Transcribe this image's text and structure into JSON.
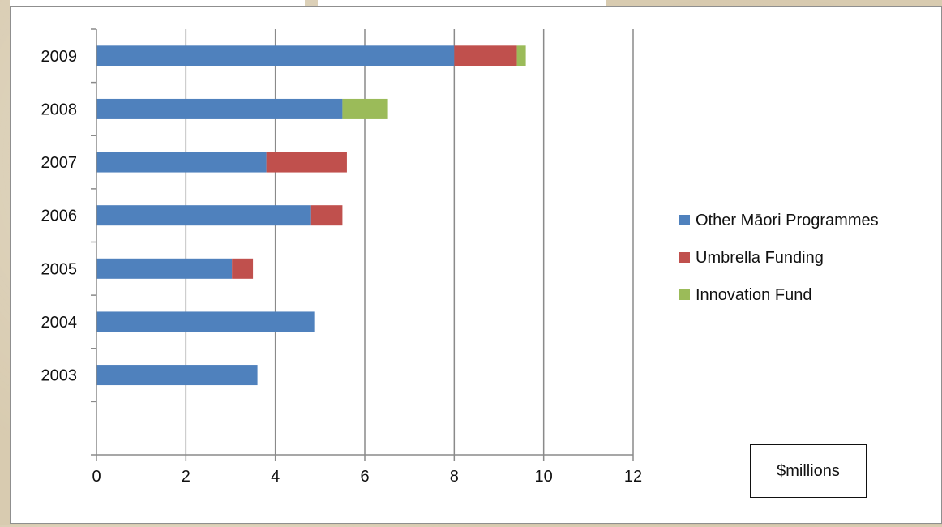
{
  "unit_label": "$millions",
  "chart_data": {
    "type": "bar",
    "orientation": "horizontal",
    "stacked": true,
    "categories": [
      "2003",
      "2004",
      "2005",
      "2006",
      "2007",
      "2008",
      "2009"
    ],
    "series": [
      {
        "name": "Other Māori Programmes",
        "color": "#4f81bd",
        "values": [
          3.6,
          4.87,
          3.03,
          4.8,
          3.8,
          5.5,
          8.0
        ]
      },
      {
        "name": "Umbrella Funding",
        "color": "#c0504d",
        "values": [
          0,
          0,
          0.47,
          0.7,
          1.8,
          0,
          1.4
        ]
      },
      {
        "name": "Innovation Fund",
        "color": "#9bbb59",
        "values": [
          0,
          0,
          0,
          0,
          0,
          1.0,
          0.2
        ]
      }
    ],
    "x_ticks": [
      "0",
      "2",
      "4",
      "6",
      "8",
      "10",
      "12"
    ],
    "xlim": [
      0,
      12
    ],
    "grid": "vertical",
    "legend_position": "right"
  }
}
